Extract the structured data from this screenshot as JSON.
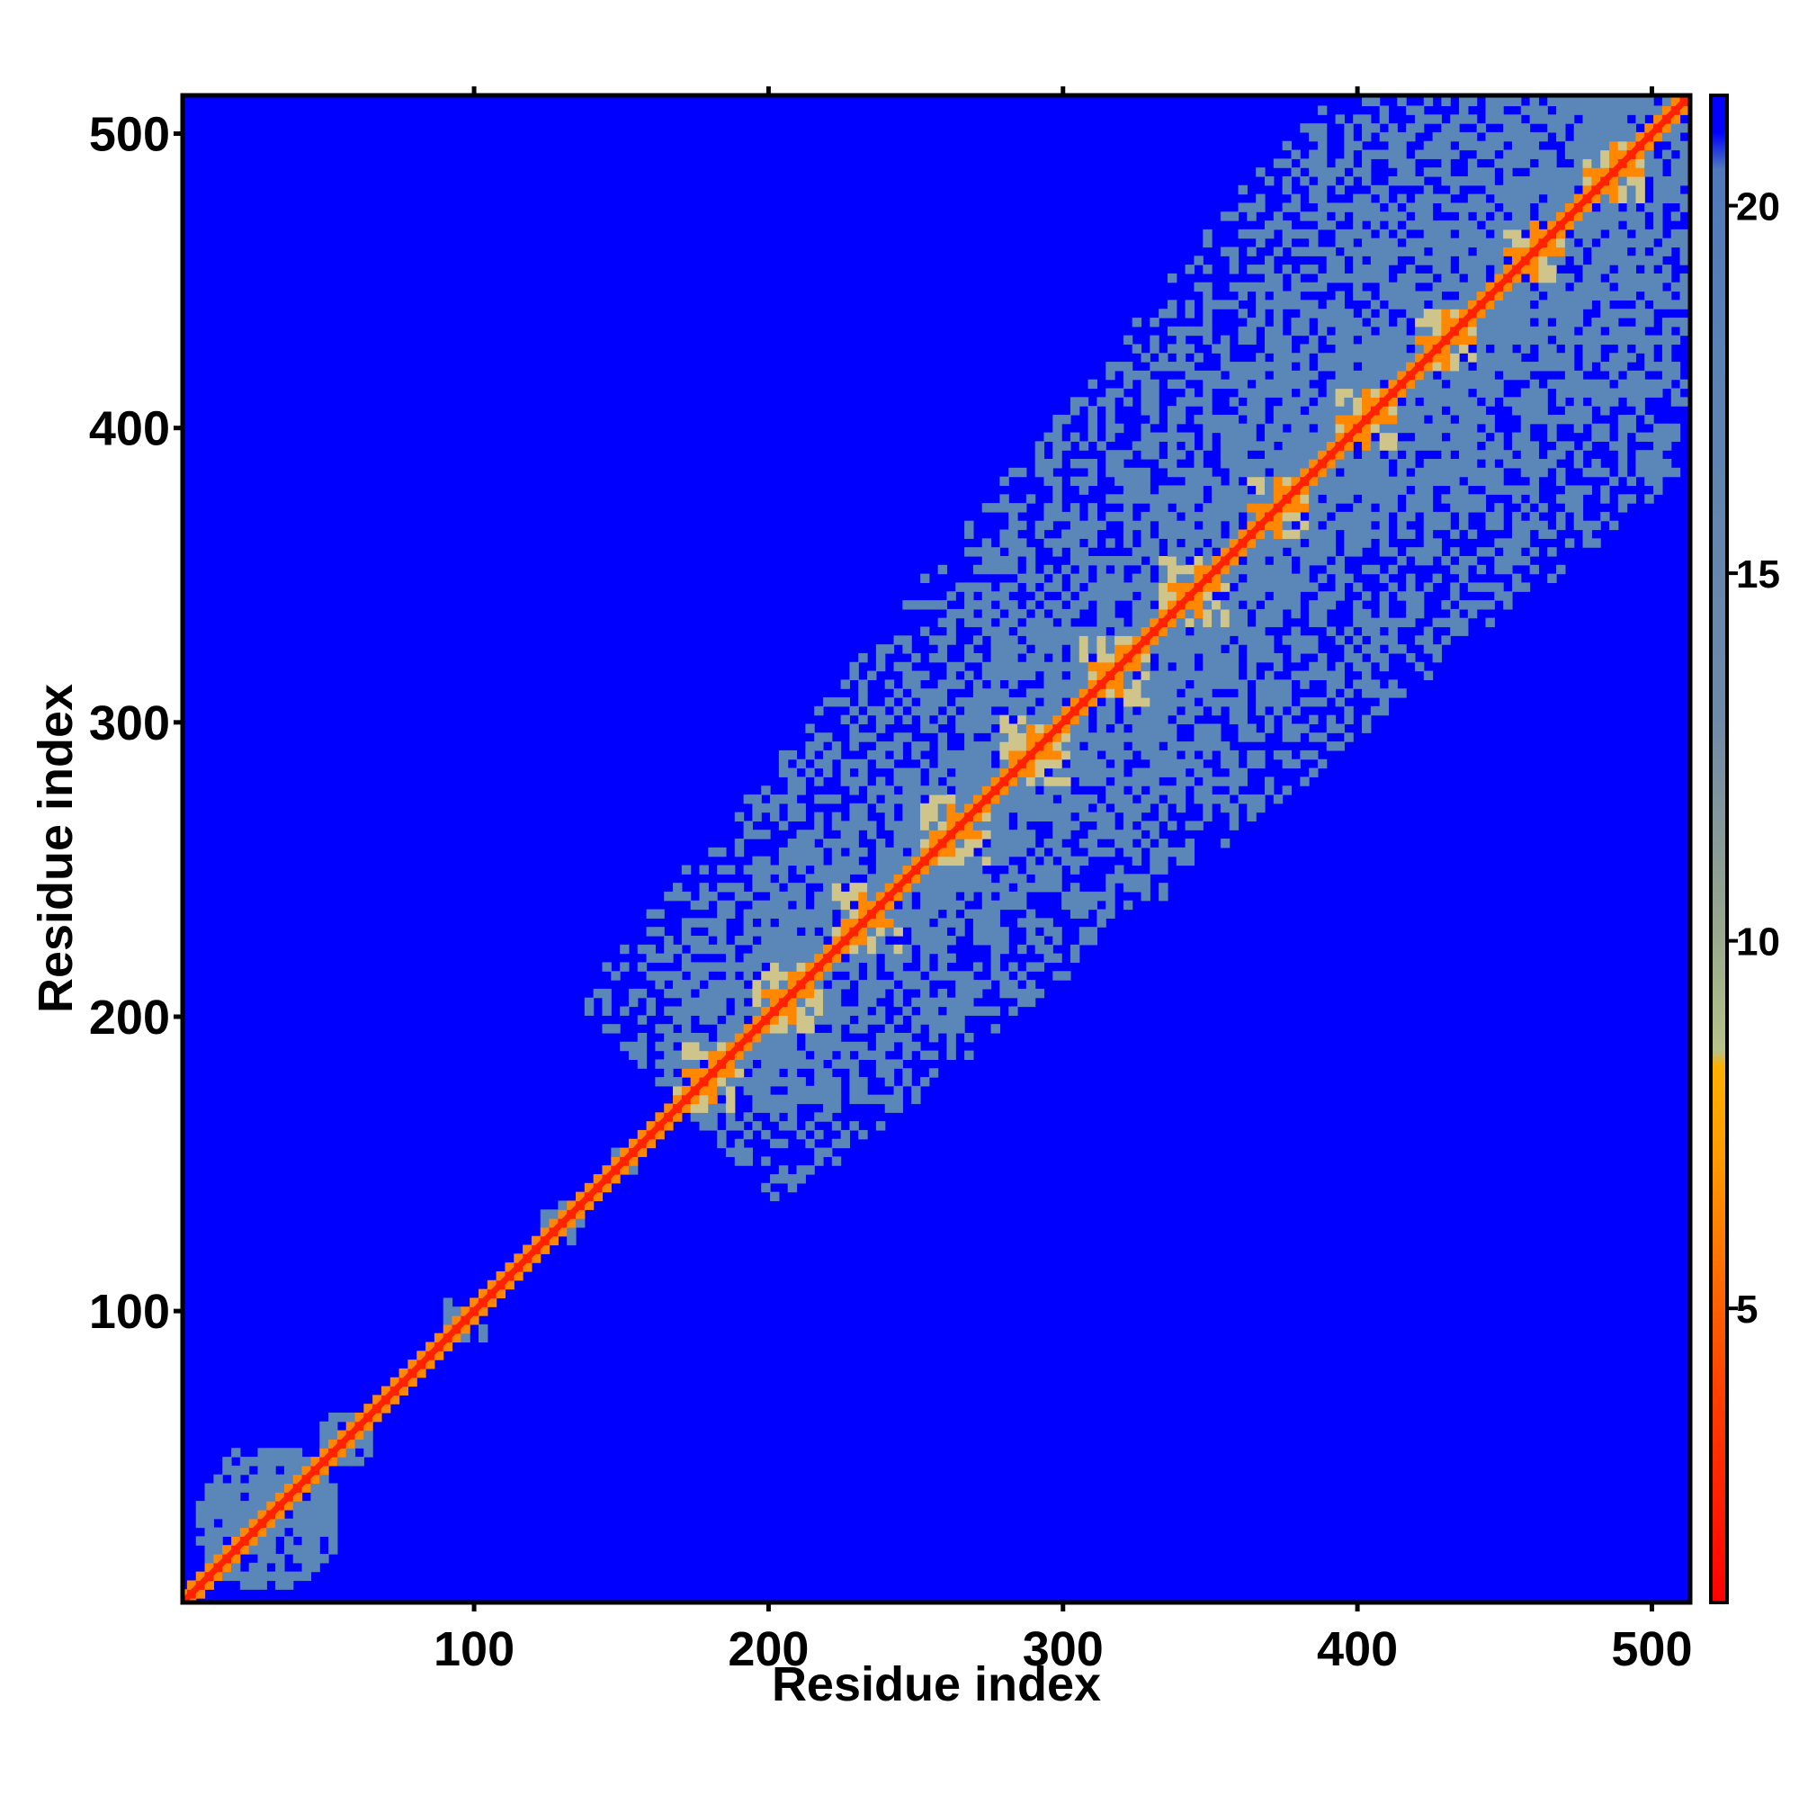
{
  "chart_data": {
    "type": "heatmap",
    "title": "",
    "xlabel": "Residue index",
    "ylabel": "Residue index",
    "xlim": [
      1,
      513
    ],
    "ylim": [
      1,
      513
    ],
    "x_ticks": [
      100,
      200,
      300,
      400,
      500
    ],
    "y_ticks": [
      100,
      200,
      300,
      400,
      500
    ],
    "x_tick_labels": [
      "100",
      "200",
      "300",
      "400",
      "500"
    ],
    "y_tick_labels": [
      "100",
      "200",
      "300",
      "400",
      "500"
    ],
    "colorbar": {
      "range": [
        1,
        21.5
      ],
      "ticks": [
        5,
        10,
        15,
        20
      ],
      "tick_labels": [
        "5",
        "10",
        "15",
        "20"
      ],
      "placement": "right",
      "stops": [
        {
          "value": 1,
          "color": "#ff0000"
        },
        {
          "value": 4,
          "color": "#ff4400"
        },
        {
          "value": 7,
          "color": "#ff9900"
        },
        {
          "value": 8.3,
          "color": "#ffb000"
        },
        {
          "value": 8.5,
          "color": "#b7c38a"
        },
        {
          "value": 10,
          "color": "#9aaa8c"
        },
        {
          "value": 13,
          "color": "#6f8aa8"
        },
        {
          "value": 18,
          "color": "#5a82b5"
        },
        {
          "value": 20.5,
          "color": "#4f79bb"
        },
        {
          "value": 21,
          "color": "#0000ff"
        }
      ]
    },
    "colors": {
      "background": "#0000ff",
      "diagonal": "#ff2200",
      "near_diagonal": "#ff8800",
      "contact": "#5a86b8",
      "contact_light": "#cfc58a"
    },
    "structure": {
      "diagonal_value": 1,
      "background_value": 21.5,
      "n_domain_boundary": 170,
      "n_domain_clusters": [
        {
          "center": [
            30,
            30
          ],
          "radius": 25
        },
        {
          "center": [
            57,
            57
          ],
          "radius": 10
        },
        {
          "center": [
            97,
            97
          ],
          "radius": 9
        },
        {
          "center": [
            130,
            130
          ],
          "radius": 7
        },
        {
          "center": [
            150,
            150
          ],
          "radius": 5
        }
      ],
      "repeat_motif_centers": [
        180,
        207,
        233,
        263,
        290,
        318,
        345,
        373,
        403,
        430,
        460,
        487
      ],
      "contact_band_halfwidth": 70
    }
  }
}
